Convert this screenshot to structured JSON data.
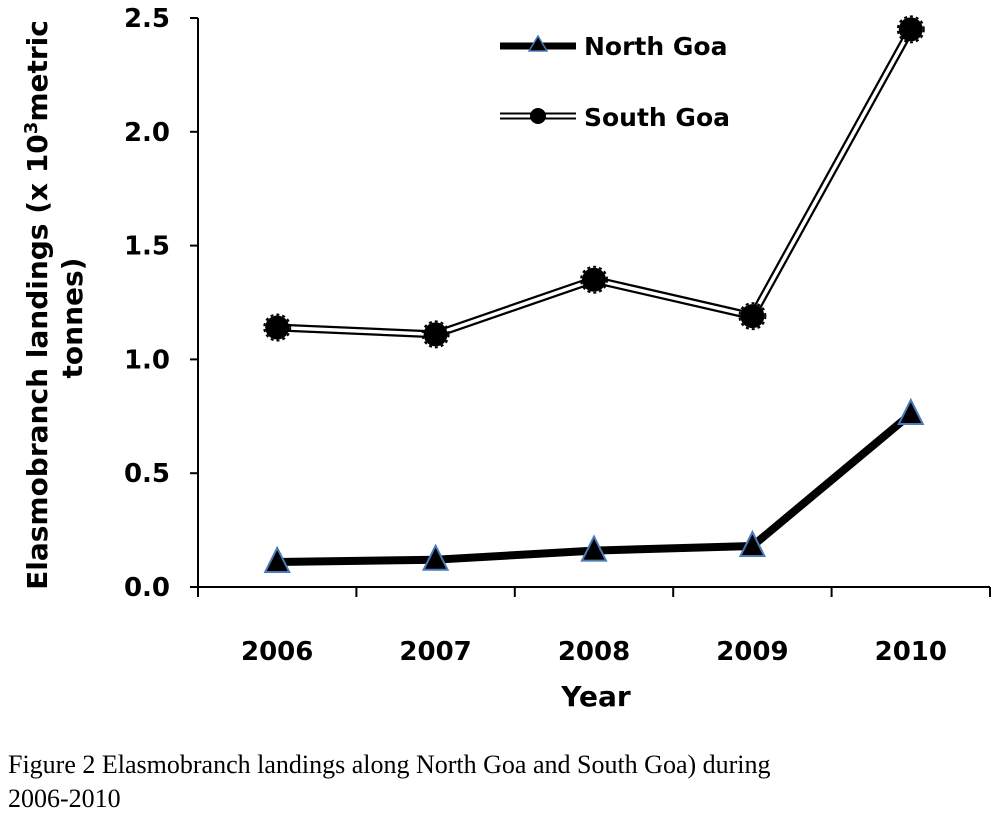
{
  "chart_data": {
    "type": "line",
    "categories": [
      "2006",
      "2007",
      "2008",
      "2009",
      "2010"
    ],
    "series": [
      {
        "name": "North Goa",
        "values": [
          0.11,
          0.12,
          0.16,
          0.18,
          0.76
        ],
        "marker": "triangle",
        "line_style": "solid-thick",
        "color": "#000000",
        "marker_edge": "#4a7ab8"
      },
      {
        "name": "South Goa",
        "values": [
          1.14,
          1.11,
          1.35,
          1.19,
          2.45
        ],
        "marker": "circle",
        "line_style": "double-hollow",
        "color": "#000000"
      }
    ],
    "ylim": [
      0,
      2.5
    ],
    "yticks": [
      "0.0",
      "0.5",
      "1.0",
      "1.5",
      "2.0",
      "2.5"
    ],
    "ylabel_line1": "Elasmobranch  landings (x 10",
    "ylabel_sup": "3",
    "ylabel_line1_end": "metric",
    "ylabel_line2": "tonnes)",
    "xlabel": "Year",
    "legend_position": "top-center"
  },
  "caption": {
    "line1": "Figure 2 Elasmobranch landings along North Goa and South Goa) during",
    "line2": "2006-2010"
  }
}
